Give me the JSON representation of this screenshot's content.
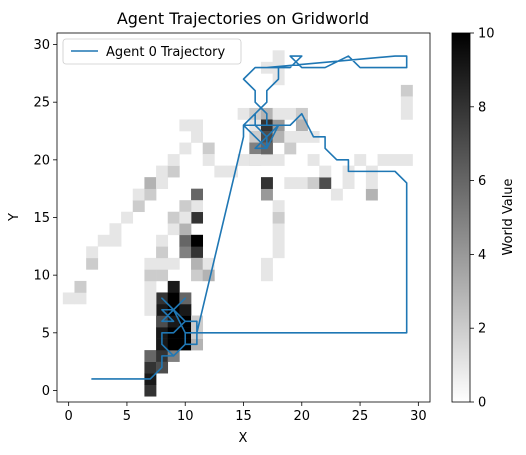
{
  "chart_data": {
    "type": "heatmap",
    "title": "Agent Trajectories on Gridworld",
    "xlabel": "X",
    "ylabel": "Y",
    "xlim": [
      -1,
      31
    ],
    "ylim": [
      -1,
      31
    ],
    "xticks": [
      0,
      5,
      10,
      15,
      20,
      25,
      30
    ],
    "yticks": [
      0,
      5,
      10,
      15,
      20,
      25,
      30
    ],
    "grid": false,
    "legend": {
      "placement": "top-left",
      "entries": [
        "Agent 0 Trajectory"
      ]
    },
    "colorbar": {
      "label": "World Value",
      "min": 0,
      "max": 10,
      "ticks": [
        0,
        2,
        4,
        6,
        8,
        10
      ],
      "colormap": "Greys"
    },
    "cells": [
      [
        7,
        0,
        8
      ],
      [
        7,
        1,
        9
      ],
      [
        7,
        2,
        8
      ],
      [
        7,
        3,
        6
      ],
      [
        8,
        2,
        7
      ],
      [
        8,
        3,
        8
      ],
      [
        8,
        4,
        9
      ],
      [
        8,
        5,
        9
      ],
      [
        8,
        6,
        7
      ],
      [
        8,
        7,
        9
      ],
      [
        8,
        8,
        8
      ],
      [
        9,
        3,
        5
      ],
      [
        9,
        4,
        10
      ],
      [
        9,
        5,
        10
      ],
      [
        9,
        6,
        9
      ],
      [
        9,
        7,
        10
      ],
      [
        9,
        8,
        10
      ],
      [
        9,
        9,
        9
      ],
      [
        10,
        4,
        10
      ],
      [
        10,
        5,
        10
      ],
      [
        10,
        6,
        10
      ],
      [
        10,
        7,
        9
      ],
      [
        10,
        8,
        6
      ],
      [
        11,
        4,
        3
      ],
      [
        11,
        5,
        2
      ],
      [
        11,
        6,
        2
      ],
      [
        7,
        7,
        1
      ],
      [
        7,
        8,
        1
      ],
      [
        7,
        9,
        1
      ],
      [
        7,
        10,
        2
      ],
      [
        7,
        11,
        1
      ],
      [
        0,
        8,
        1
      ],
      [
        1,
        8,
        1
      ],
      [
        1,
        9,
        2
      ],
      [
        2,
        11,
        2
      ],
      [
        2,
        12,
        1
      ],
      [
        3,
        13,
        1
      ],
      [
        4,
        13,
        1
      ],
      [
        4,
        14,
        1
      ],
      [
        5,
        15,
        1
      ],
      [
        6,
        16,
        2
      ],
      [
        6,
        17,
        1
      ],
      [
        7,
        17,
        2
      ],
      [
        7,
        18,
        3
      ],
      [
        8,
        18,
        1
      ],
      [
        8,
        19,
        1
      ],
      [
        9,
        19,
        2
      ],
      [
        9,
        20,
        1
      ],
      [
        10,
        21,
        1
      ],
      [
        11,
        22,
        1
      ],
      [
        11,
        23,
        1
      ],
      [
        10,
        23,
        1
      ],
      [
        12,
        21,
        2
      ],
      [
        12,
        20,
        1
      ],
      [
        13,
        19,
        1
      ],
      [
        14,
        19,
        1
      ],
      [
        15,
        20,
        1
      ],
      [
        16,
        20,
        2
      ],
      [
        17,
        20,
        1
      ],
      [
        18,
        20,
        1
      ],
      [
        8,
        10,
        2
      ],
      [
        8,
        11,
        1
      ],
      [
        8,
        12,
        2
      ],
      [
        8,
        13,
        1
      ],
      [
        9,
        11,
        1
      ],
      [
        9,
        14,
        1
      ],
      [
        9,
        15,
        2
      ],
      [
        10,
        12,
        5
      ],
      [
        10,
        13,
        6
      ],
      [
        10,
        14,
        3
      ],
      [
        11,
        12,
        8
      ],
      [
        11,
        13,
        10
      ],
      [
        11,
        15,
        8
      ],
      [
        11,
        17,
        6
      ],
      [
        11,
        16,
        1
      ],
      [
        11,
        10,
        2
      ],
      [
        11,
        11,
        3
      ],
      [
        12,
        10,
        3
      ],
      [
        12,
        11,
        1
      ],
      [
        10,
        16,
        2
      ],
      [
        10,
        15,
        1
      ],
      [
        17,
        10,
        1
      ],
      [
        17,
        11,
        1
      ],
      [
        18,
        12,
        1
      ],
      [
        18,
        13,
        1
      ],
      [
        18,
        14,
        1
      ],
      [
        18,
        15,
        2
      ],
      [
        18,
        16,
        1
      ],
      [
        17,
        17,
        4
      ],
      [
        17,
        18,
        8
      ],
      [
        17,
        28,
        1
      ],
      [
        18,
        27,
        1
      ],
      [
        18,
        28,
        1
      ],
      [
        18,
        29,
        1
      ],
      [
        15,
        24,
        1
      ],
      [
        16,
        23,
        1
      ],
      [
        16,
        24,
        2
      ],
      [
        16,
        22,
        2
      ],
      [
        16,
        21,
        5
      ],
      [
        16,
        20,
        1
      ],
      [
        17,
        24,
        3
      ],
      [
        17,
        23,
        8
      ],
      [
        17,
        22,
        7
      ],
      [
        17,
        21,
        6
      ],
      [
        18,
        23,
        4
      ],
      [
        18,
        22,
        3
      ],
      [
        18,
        24,
        1
      ],
      [
        19,
        24,
        1
      ],
      [
        19,
        22,
        1
      ],
      [
        19,
        21,
        2
      ],
      [
        20,
        24,
        2
      ],
      [
        20,
        23,
        3
      ],
      [
        20,
        22,
        1
      ],
      [
        21,
        20,
        1
      ],
      [
        21,
        22,
        1
      ],
      [
        19,
        18,
        1
      ],
      [
        20,
        18,
        1
      ],
      [
        21,
        18,
        2
      ],
      [
        22,
        18,
        7
      ],
      [
        22,
        19,
        1
      ],
      [
        23,
        17,
        1
      ],
      [
        24,
        18,
        1
      ],
      [
        24,
        19,
        1
      ],
      [
        25,
        20,
        1
      ],
      [
        26,
        17,
        3
      ],
      [
        26,
        18,
        1
      ],
      [
        27,
        20,
        1
      ],
      [
        28,
        20,
        1
      ],
      [
        29,
        20,
        1
      ],
      [
        26,
        19,
        1
      ],
      [
        29,
        26,
        2
      ],
      [
        29,
        25,
        1
      ],
      [
        29,
        24,
        1
      ]
    ],
    "series": [
      {
        "name": "Agent 0 Trajectory",
        "color": "#1f77b4",
        "x": [
          2,
          7,
          8,
          8,
          9,
          10,
          11,
          11,
          29,
          29,
          28,
          24,
          24,
          23,
          23,
          22,
          22,
          21,
          20,
          19,
          18,
          17,
          16,
          17,
          18,
          17,
          17,
          16,
          16,
          15,
          16,
          17,
          17,
          18,
          19,
          20,
          19,
          20,
          21,
          21,
          22,
          22,
          24,
          24,
          25,
          28,
          29,
          29,
          28,
          17,
          18,
          18,
          17,
          17,
          16,
          16,
          17,
          16,
          17,
          17,
          16,
          15,
          16,
          16,
          15,
          15,
          11,
          11,
          10,
          10,
          9,
          9,
          8,
          8,
          9,
          10,
          11,
          11,
          10,
          9,
          8,
          9,
          8,
          9,
          10,
          9,
          8,
          9,
          10,
          9,
          8
        ],
        "y": [
          1,
          1,
          2,
          3,
          3,
          4,
          4,
          5,
          5,
          18,
          19,
          19,
          20,
          20,
          20,
          21,
          22,
          22,
          24,
          23,
          23,
          22,
          21,
          21,
          23,
          23,
          24,
          25,
          26,
          27,
          28,
          28,
          28,
          28,
          28,
          29,
          29,
          28,
          28,
          28,
          28,
          28,
          29,
          29,
          28,
          28,
          28,
          29,
          29,
          28,
          28,
          27,
          26,
          25,
          24,
          23,
          23,
          23,
          22,
          21,
          22,
          23,
          23,
          24,
          23,
          22,
          5,
          5,
          5,
          4,
          3,
          3,
          4,
          5,
          5,
          6,
          6,
          5,
          5,
          7,
          7,
          6,
          6,
          7,
          8,
          7,
          8,
          7,
          6,
          5,
          5
        ]
      }
    ]
  }
}
